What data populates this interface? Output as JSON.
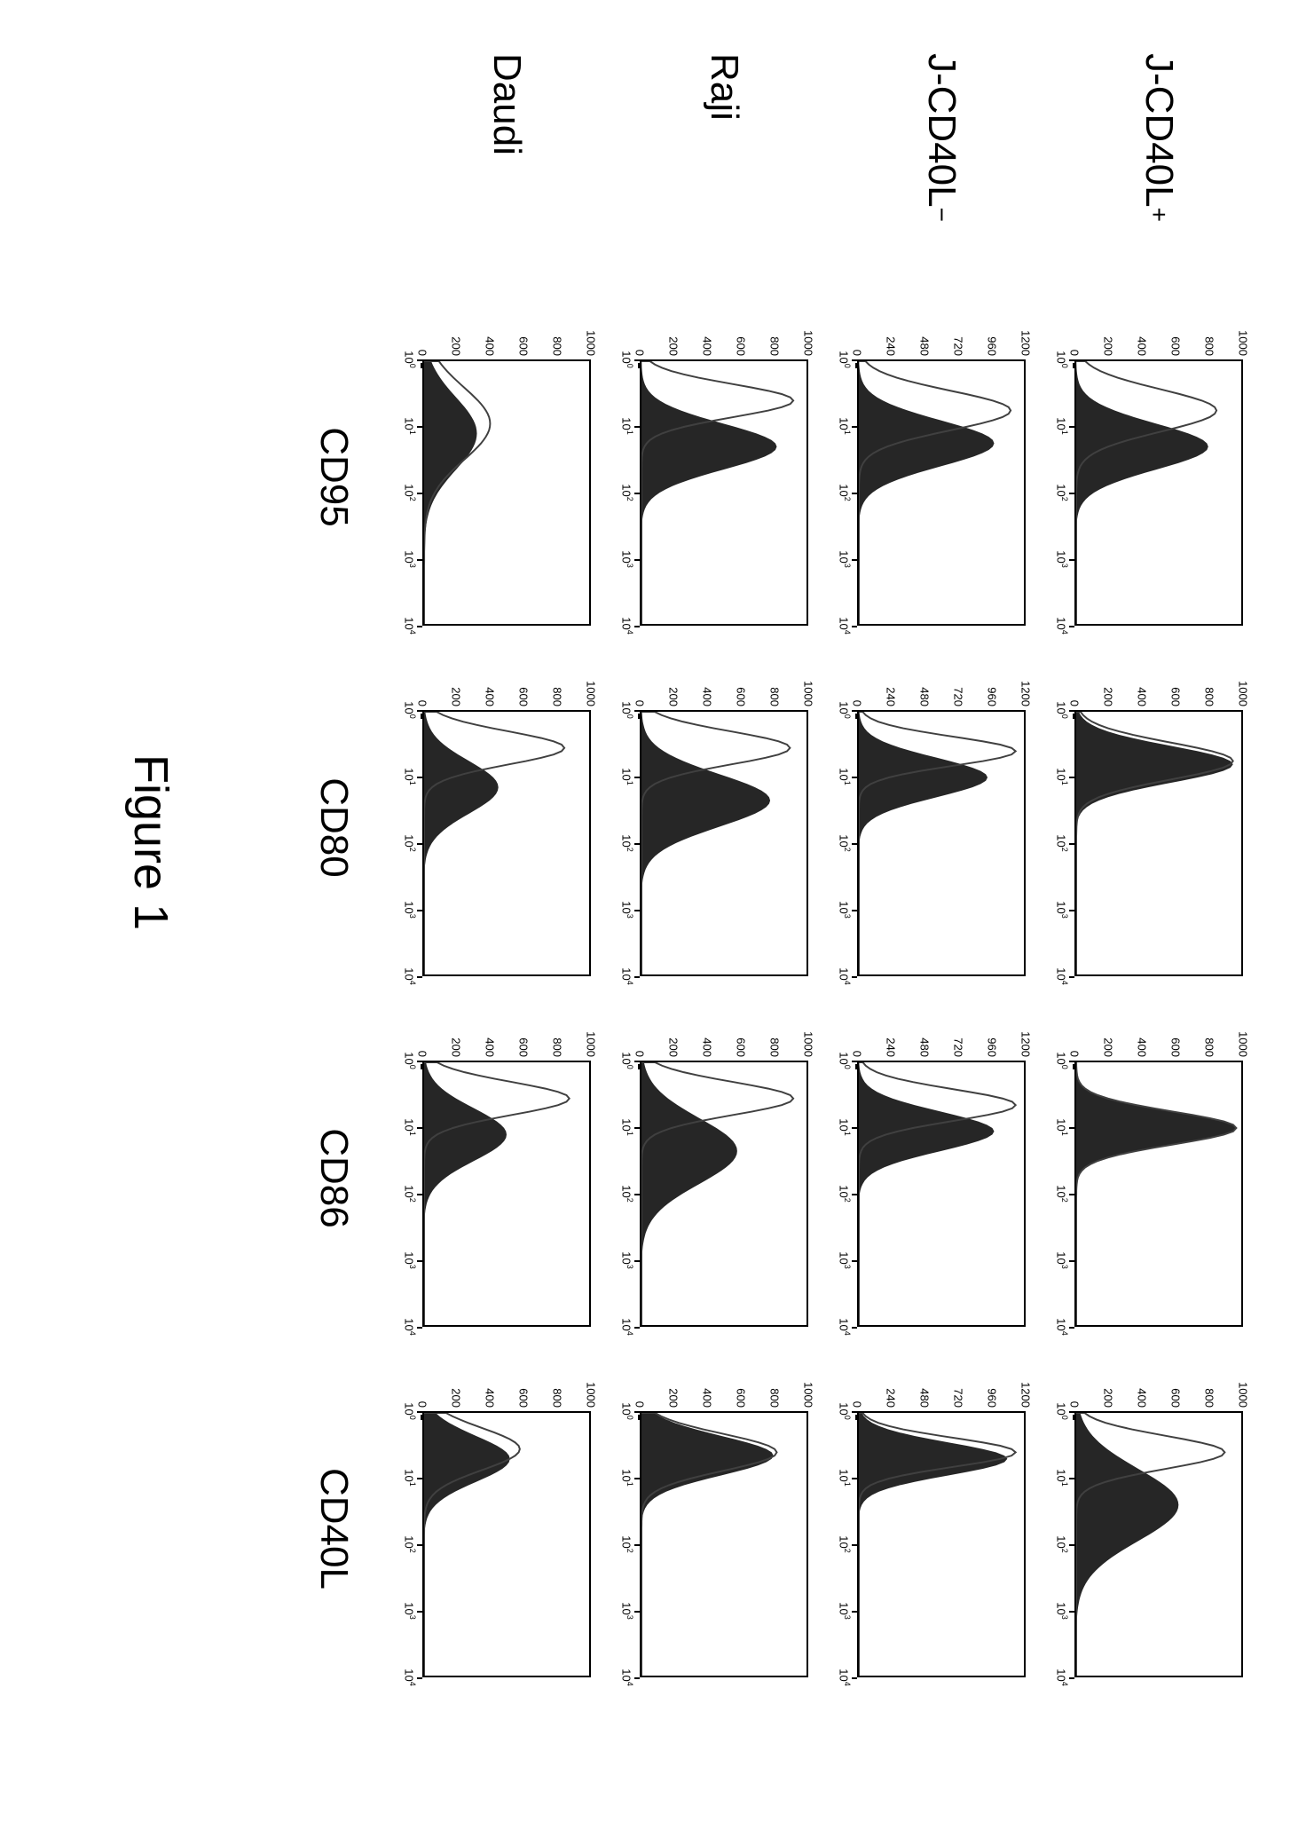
{
  "figure_caption": "Figure 1",
  "row_labels": [
    "J-CD40L<sup>+</sup>",
    "J-CD40L<sup>−</sup>",
    "Raji",
    "Daudi"
  ],
  "col_labels": [
    "CD95",
    "CD80",
    "CD86",
    "CD40L"
  ],
  "axis": {
    "x_ticks": [
      "10^0",
      "10^1",
      "10^2",
      "10^3",
      "10^4"
    ],
    "x_range": [
      0,
      4
    ],
    "background": "#ffffff",
    "border_color": "#000000",
    "tick_color": "#000000",
    "tick_fontsize": 13
  },
  "hist_style": {
    "fill_color": "#1a1a1a",
    "fill_opacity": 0.95,
    "outline_color": "#404040",
    "outline_width": 2
  },
  "cells": [
    [
      {
        "ymax": 1000,
        "ytick_step": 200,
        "filled_peak_x": 1.3,
        "filled_peak_h": 0.8,
        "filled_spread": 0.35,
        "outline_peak_x": 0.75,
        "outline_peak_h": 0.85,
        "outline_spread": 0.32
      },
      {
        "ymax": 1000,
        "ytick_step": 200,
        "filled_peak_x": 0.8,
        "filled_peak_h": 0.95,
        "filled_spread": 0.28,
        "outline_peak_x": 0.75,
        "outline_peak_h": 0.95,
        "outline_spread": 0.28
      },
      {
        "ymax": 1000,
        "ytick_step": 200,
        "filled_peak_x": 1.0,
        "filled_peak_h": 0.97,
        "filled_spread": 0.25,
        "outline_peak_x": 1.0,
        "outline_peak_h": 0.97,
        "outline_spread": 0.25
      },
      {
        "ymax": 1000,
        "ytick_step": 200,
        "filled_peak_x": 1.4,
        "filled_peak_h": 0.62,
        "filled_spread": 0.55,
        "outline_peak_x": 0.6,
        "outline_peak_h": 0.9,
        "outline_spread": 0.25
      }
    ],
    [
      {
        "ymax": 1200,
        "ytick_step": 240,
        "filled_peak_x": 1.25,
        "filled_peak_h": 0.82,
        "filled_spread": 0.35,
        "outline_peak_x": 0.75,
        "outline_peak_h": 0.92,
        "outline_spread": 0.3
      },
      {
        "ymax": 1200,
        "ytick_step": 240,
        "filled_peak_x": 1.0,
        "filled_peak_h": 0.78,
        "filled_spread": 0.3,
        "outline_peak_x": 0.6,
        "outline_peak_h": 0.95,
        "outline_spread": 0.22
      },
      {
        "ymax": 1200,
        "ytick_step": 240,
        "filled_peak_x": 1.05,
        "filled_peak_h": 0.82,
        "filled_spread": 0.3,
        "outline_peak_x": 0.65,
        "outline_peak_h": 0.95,
        "outline_spread": 0.24
      },
      {
        "ymax": 1200,
        "ytick_step": 240,
        "filled_peak_x": 0.7,
        "filled_peak_h": 0.9,
        "filled_spread": 0.25,
        "outline_peak_x": 0.6,
        "outline_peak_h": 0.95,
        "outline_spread": 0.22
      }
    ],
    [
      {
        "ymax": 1000,
        "ytick_step": 200,
        "filled_peak_x": 1.3,
        "filled_peak_h": 0.82,
        "filled_spread": 0.35,
        "outline_peak_x": 0.6,
        "outline_peak_h": 0.92,
        "outline_spread": 0.25
      },
      {
        "ymax": 1000,
        "ytick_step": 200,
        "filled_peak_x": 1.35,
        "filled_peak_h": 0.78,
        "filled_spread": 0.4,
        "outline_peak_x": 0.55,
        "outline_peak_h": 0.9,
        "outline_spread": 0.25
      },
      {
        "ymax": 1000,
        "ytick_step": 200,
        "filled_peak_x": 1.35,
        "filled_peak_h": 0.58,
        "filled_spread": 0.5,
        "outline_peak_x": 0.55,
        "outline_peak_h": 0.92,
        "outline_spread": 0.25
      },
      {
        "ymax": 1000,
        "ytick_step": 200,
        "filled_peak_x": 0.65,
        "filled_peak_h": 0.8,
        "filled_spread": 0.3,
        "outline_peak_x": 0.6,
        "outline_peak_h": 0.82,
        "outline_spread": 0.28
      }
    ],
    [
      {
        "ymax": 1000,
        "ytick_step": 200,
        "filled_peak_x": 1.1,
        "filled_peak_h": 0.32,
        "filled_spread": 0.55,
        "outline_peak_x": 0.95,
        "outline_peak_h": 0.4,
        "outline_spread": 0.55
      },
      {
        "ymax": 1000,
        "ytick_step": 200,
        "filled_peak_x": 1.15,
        "filled_peak_h": 0.45,
        "filled_spread": 0.4,
        "outline_peak_x": 0.55,
        "outline_peak_h": 0.85,
        "outline_spread": 0.25
      },
      {
        "ymax": 1000,
        "ytick_step": 200,
        "filled_peak_x": 1.1,
        "filled_peak_h": 0.5,
        "filled_spread": 0.4,
        "outline_peak_x": 0.55,
        "outline_peak_h": 0.88,
        "outline_spread": 0.25
      },
      {
        "ymax": 1000,
        "ytick_step": 200,
        "filled_peak_x": 0.7,
        "filled_peak_h": 0.52,
        "filled_spread": 0.35,
        "outline_peak_x": 0.55,
        "outline_peak_h": 0.58,
        "outline_spread": 0.32
      }
    ]
  ]
}
